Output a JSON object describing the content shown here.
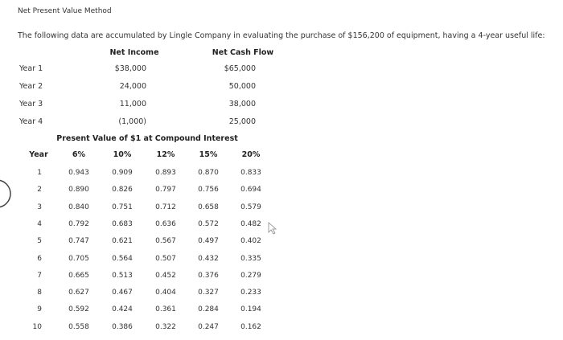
{
  "header": {
    "title": "Net Present Value Method",
    "intro": "The following data are accumulated by Lingle Company in evaluating the purchase of $156,200 of equipment, having a 4-year useful life:"
  },
  "cash_table": {
    "headers": [
      "Net Income",
      "Net Cash Flow"
    ],
    "rows": [
      [
        "Year 1",
        "$38,000",
        "$65,000"
      ],
      [
        "Year 2",
        "24,000",
        "50,000"
      ],
      [
        "Year 3",
        "11,000",
        "38,000"
      ],
      [
        "Year 4",
        "(1,000)",
        "25,000"
      ]
    ]
  },
  "pv_table": {
    "title": "Present Value of $1 at Compound Interest",
    "headers": [
      "Year",
      "6%",
      "10%",
      "12%",
      "15%",
      "20%"
    ],
    "rows": [
      [
        "1",
        "0.943",
        "0.909",
        "0.893",
        "0.870",
        "0.833"
      ],
      [
        "2",
        "0.890",
        "0.826",
        "0.797",
        "0.756",
        "0.694"
      ],
      [
        "3",
        "0.840",
        "0.751",
        "0.712",
        "0.658",
        "0.579"
      ],
      [
        "4",
        "0.792",
        "0.683",
        "0.636",
        "0.572",
        "0.482"
      ],
      [
        "5",
        "0.747",
        "0.621",
        "0.567",
        "0.497",
        "0.402"
      ],
      [
        "6",
        "0.705",
        "0.564",
        "0.507",
        "0.432",
        "0.335"
      ],
      [
        "7",
        "0.665",
        "0.513",
        "0.452",
        "0.376",
        "0.279"
      ],
      [
        "8",
        "0.627",
        "0.467",
        "0.404",
        "0.327",
        "0.233"
      ],
      [
        "9",
        "0.592",
        "0.424",
        "0.361",
        "0.284",
        "0.194"
      ],
      [
        "10",
        "0.558",
        "0.386",
        "0.322",
        "0.247",
        "0.162"
      ]
    ]
  }
}
